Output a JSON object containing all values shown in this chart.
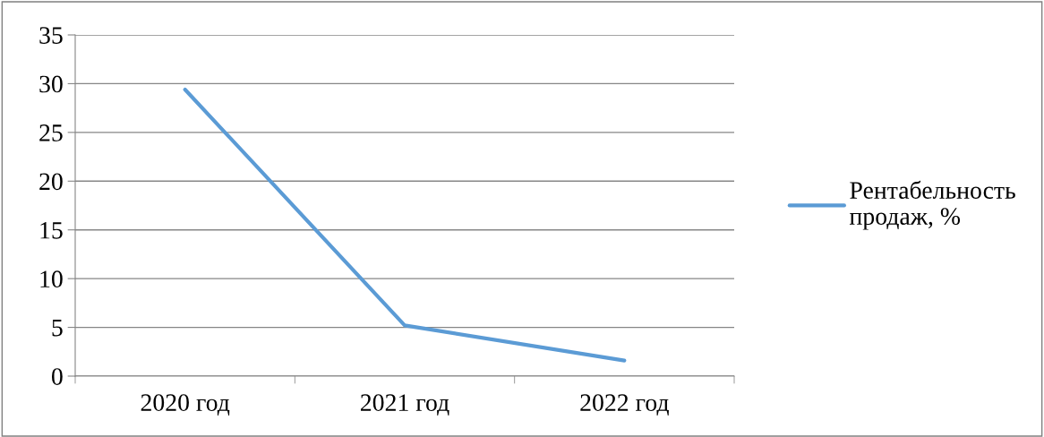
{
  "chart_data": {
    "type": "line",
    "categories": [
      "2020 год",
      "2021 год",
      "2022 год"
    ],
    "series": [
      {
        "name": "Рентабельность\nпродаж, %",
        "color": "#5b9bd5",
        "values": [
          29.4,
          5.2,
          1.6
        ]
      }
    ],
    "ylim": [
      0,
      35
    ],
    "yticks": [
      0,
      5,
      10,
      15,
      20,
      25,
      30,
      35
    ],
    "grid": "y",
    "legend": "right",
    "marker": "none",
    "line_style": "solid"
  }
}
